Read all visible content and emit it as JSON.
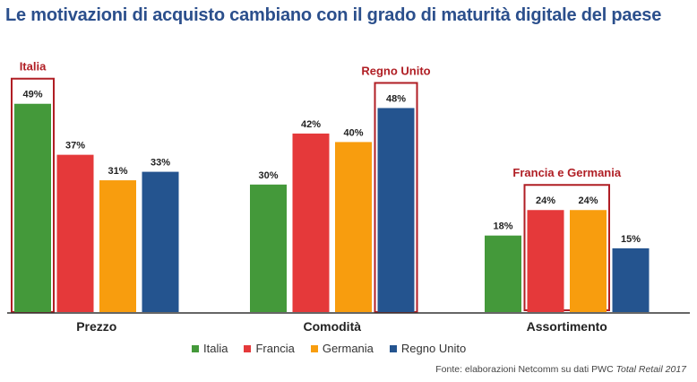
{
  "title": "Le motivazioni di acquisto cambiano con il grado di maturità digitale del paese",
  "source": {
    "prefix": "Fonte: elaborazioni Netcomm su dati PWC ",
    "italic": "Total Retail 2017"
  },
  "colors": {
    "highlight": "#b01e24",
    "baseline": "#333333",
    "title": "#2b4f8c"
  },
  "chart_data": {
    "type": "bar",
    "title": "Le motivazioni di acquisto cambiano con il grado di maturità digitale del paese",
    "categories": [
      "Prezzo",
      "Comodità",
      "Assortimento"
    ],
    "series": [
      {
        "name": "Italia",
        "color": "#44993a",
        "values": [
          49,
          30,
          18
        ],
        "labels": [
          "49%",
          "30%",
          "18%"
        ]
      },
      {
        "name": "Francia",
        "color": "#e5393a",
        "values": [
          37,
          42,
          24
        ],
        "labels": [
          "37%",
          "42%",
          "24%"
        ]
      },
      {
        "name": "Germania",
        "color": "#f89d0e",
        "values": [
          31,
          40,
          24
        ],
        "labels": [
          "31%",
          "40%",
          "24%"
        ]
      },
      {
        "name": "Regno Unito",
        "color": "#24548f",
        "values": [
          33,
          48,
          15
        ],
        "labels": [
          "33%",
          "48%",
          "15%"
        ]
      }
    ],
    "ylim": [
      0,
      50
    ],
    "grid": false,
    "legend": "bottom",
    "annotations": [
      {
        "text": "Italia",
        "category": 0,
        "series": [
          0
        ]
      },
      {
        "text": "Regno Unito",
        "category": 1,
        "series": [
          3
        ]
      },
      {
        "text": "Francia e Germania",
        "category": 2,
        "series": [
          1,
          2
        ]
      }
    ]
  }
}
